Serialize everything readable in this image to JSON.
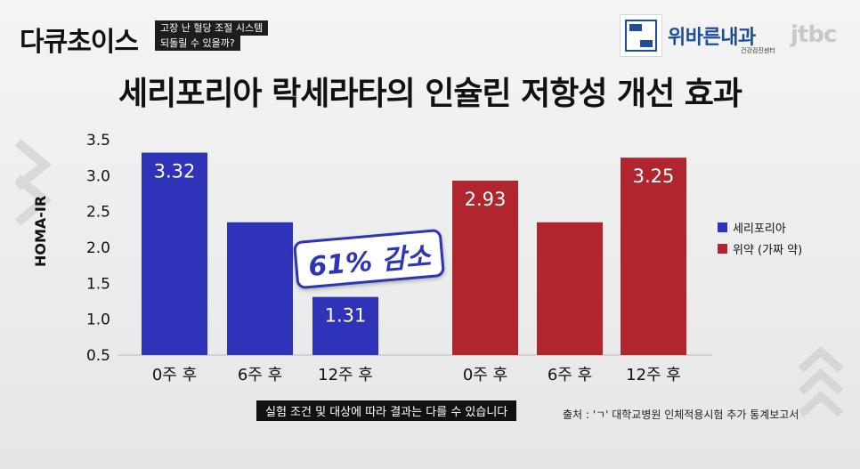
{
  "header": {
    "brand": "다큐초이스",
    "tagline_1": "고장 난 혈당 조절 시스템",
    "tagline_2": "되돌릴 수 있을까?",
    "sponsor_name": "위바른내과",
    "sponsor_sub": "건강검진센터",
    "sponsor_logo_text": "위바른",
    "channel": "jtbc"
  },
  "title": "세리포리아 락세라타의 인슐린 저항성 개선 효과",
  "badge": "61% 감소",
  "caption": "실험 조건 및 대상에 따라 결과는 다를 수 있습니다",
  "source": "출처 : 'ㄱ' 대학교병원 인체적용시험 추가 통계보고서",
  "colors": {
    "blue": "#2f33b8",
    "red": "#b1262e"
  },
  "chart_data": {
    "type": "bar",
    "ylabel": "HOMA-IR",
    "ylim": [
      0.5,
      3.5
    ],
    "yticks": [
      "3.5",
      "3.0",
      "2.5",
      "2.0",
      "1.5",
      "1.0",
      "0.5"
    ],
    "series": [
      {
        "name": "세리포리아",
        "categories": [
          "0주 후",
          "6주 후",
          "12주 후"
        ],
        "values": [
          3.32,
          2.35,
          1.31
        ],
        "labels": [
          "3.32",
          "",
          "1.31"
        ]
      },
      {
        "name": "위약 (가짜 약)",
        "categories": [
          "0주 후",
          "6주 후",
          "12주 후"
        ],
        "values": [
          2.93,
          2.35,
          3.25
        ],
        "labels": [
          "2.93",
          "",
          "3.25"
        ]
      }
    ],
    "annotation": "61% 감소",
    "legend_position": "right"
  }
}
